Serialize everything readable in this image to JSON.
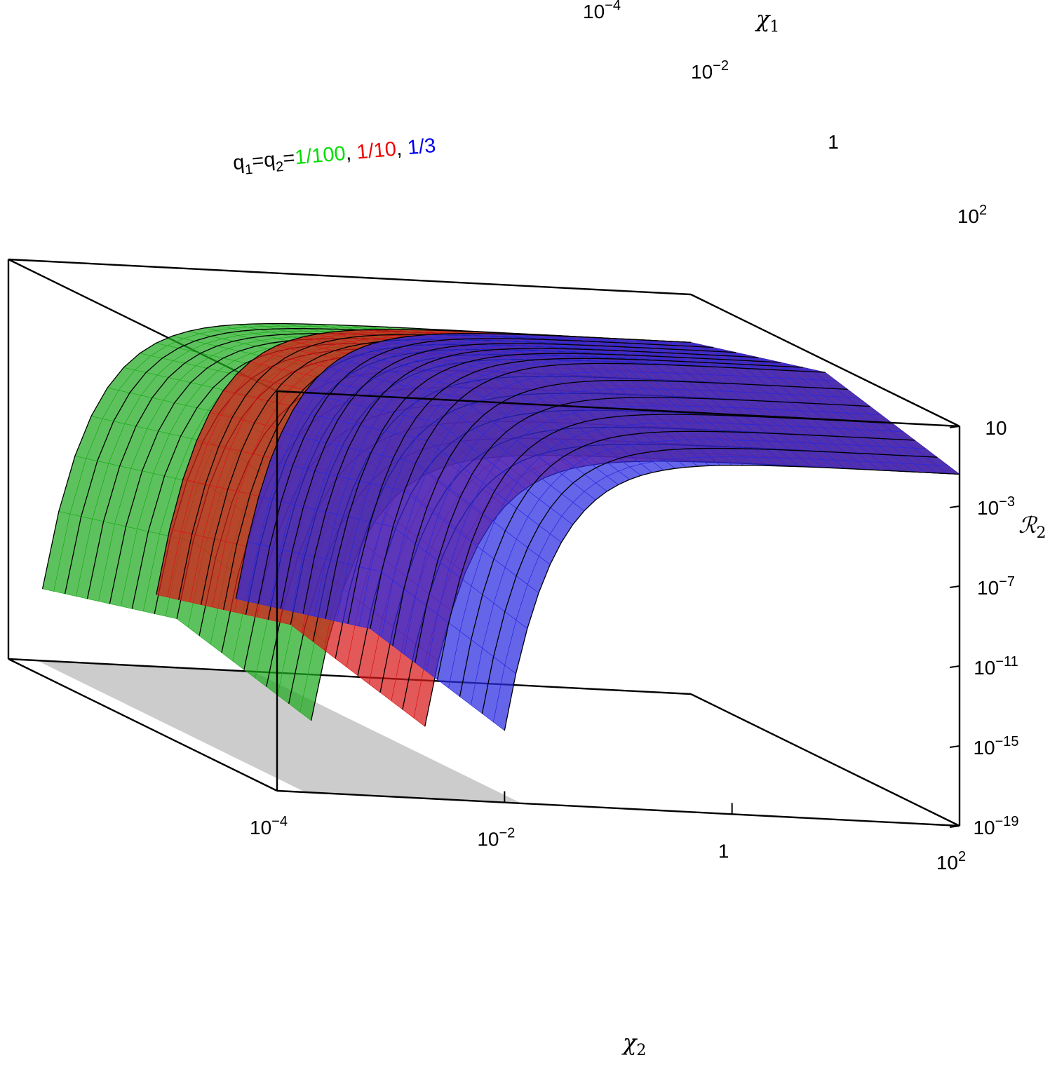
{
  "chart_data": {
    "type": "surface3d",
    "annotation": {
      "prefix": "q",
      "sub1": "1",
      "mid": "=q",
      "sub2": "2",
      "eq": "=",
      "values": [
        {
          "text": "1/100",
          "color": "#00dd00"
        },
        {
          "text": "1/10",
          "color": "#ee0000"
        },
        {
          "text": "1/3",
          "color": "#0000ee"
        }
      ],
      "separator": ", "
    },
    "axes": {
      "x1": {
        "label": "χ",
        "sub": "1",
        "scale": "log",
        "range": [
          0.0001,
          100
        ],
        "ticks": [
          {
            "b": "10",
            "e": "−4"
          },
          {
            "b": "10",
            "e": "−2"
          },
          {
            "b": "1",
            "e": ""
          },
          {
            "b": "10",
            "e": "2"
          }
        ]
      },
      "x2": {
        "label": "χ",
        "sub": "2",
        "scale": "log",
        "range": [
          0.0001,
          100
        ],
        "ticks": [
          {
            "b": "10",
            "e": "−4"
          },
          {
            "b": "10",
            "e": "−2"
          },
          {
            "b": "1",
            "e": ""
          },
          {
            "b": "10",
            "e": "2"
          }
        ]
      },
      "z": {
        "label": "ℛ",
        "sub": "2",
        "scale": "log",
        "range": [
          1e-19,
          10
        ],
        "ticks": [
          {
            "b": "10",
            "e": ""
          },
          {
            "b": "10",
            "e": "−3"
          },
          {
            "b": "10",
            "e": "−7"
          },
          {
            "b": "10",
            "e": "−11"
          },
          {
            "b": "10",
            "e": "−15"
          },
          {
            "b": "10",
            "e": "−19"
          }
        ]
      }
    },
    "series": [
      {
        "name": "1/100",
        "color": "#1faa1f",
        "onset_log_chi": -3.7
      },
      {
        "name": "1/10",
        "color": "#d81818",
        "onset_log_chi": -2.7
      },
      {
        "name": "1/3",
        "color": "#2a2ae0",
        "onset_log_chi": -2.0
      }
    ],
    "floor_color": "#cccccc",
    "grid": false
  }
}
